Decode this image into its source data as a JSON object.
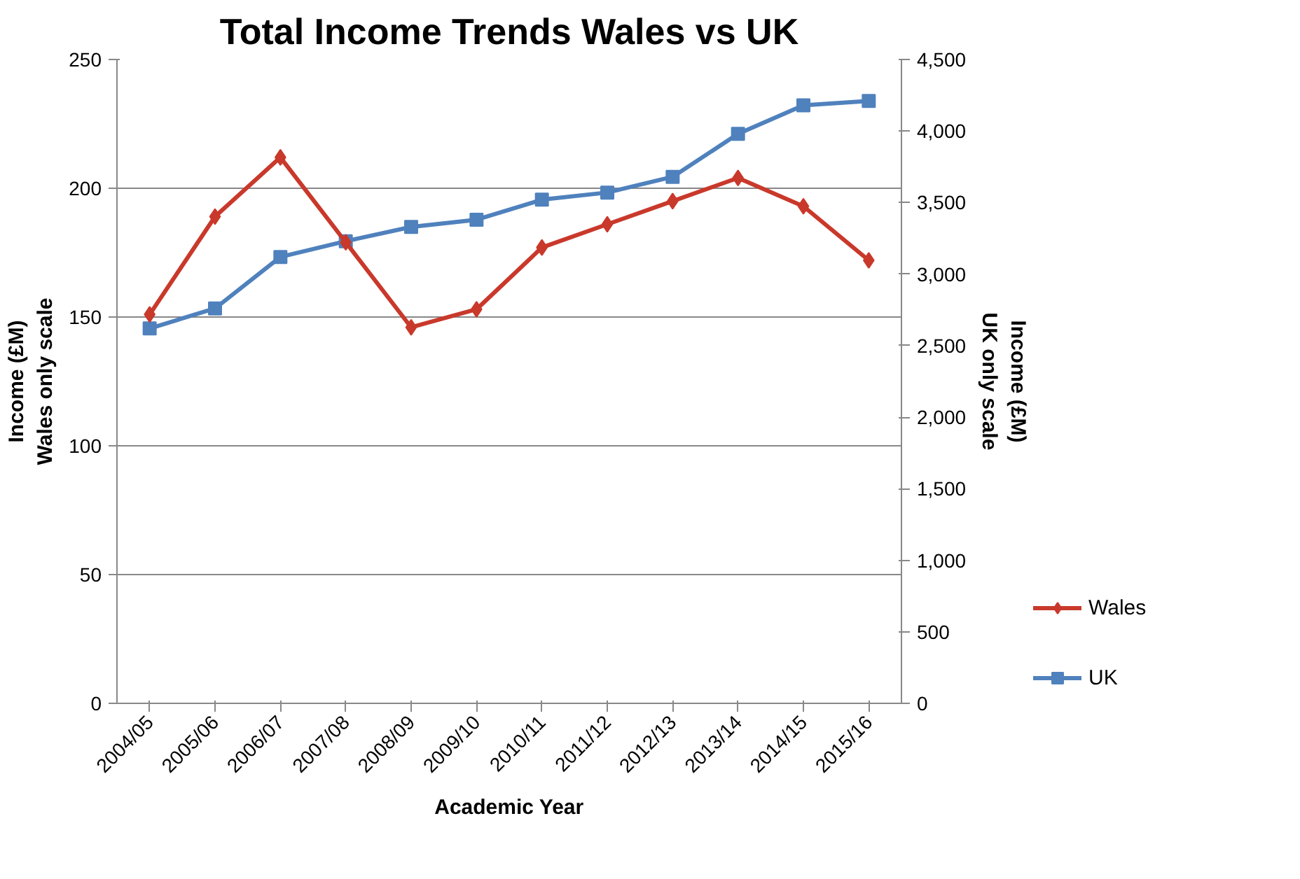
{
  "chart_data": {
    "type": "line",
    "title": "Total Income Trends Wales vs UK",
    "xlabel": "Academic Year",
    "ylabel": "Income (£M)\nWales only scale",
    "y2label": "Income (£M)\nUK only scale",
    "categories": [
      "2004/05",
      "2005/06",
      "2006/07",
      "2007/08",
      "2008/09",
      "2009/10",
      "2010/11",
      "2011/12",
      "2012/13",
      "2013/14",
      "2014/15",
      "2015/16"
    ],
    "series": [
      {
        "name": "Wales",
        "color": "#c9392b",
        "marker": "diamond",
        "values": [
          151,
          189,
          212,
          179,
          146,
          153,
          177,
          186,
          195,
          204,
          193,
          172
        ]
      },
      {
        "name": "UK",
        "color": "#4f81bd",
        "marker": "square",
        "axis": "y2",
        "values": [
          2620,
          2760,
          3120,
          3230,
          3330,
          3380,
          3520,
          3570,
          3680,
          3980,
          4180,
          4210
        ]
      }
    ],
    "ylim": [
      0,
      250
    ],
    "yticks": [
      0,
      50,
      100,
      150,
      200,
      250
    ],
    "y2lim": [
      0,
      4500
    ],
    "y2ticks": [
      {
        "value": 0,
        "label": "0"
      },
      {
        "value": 500,
        "label": "500"
      },
      {
        "value": 1000,
        "label": "1,000"
      },
      {
        "value": 1500,
        "label": "1,500"
      },
      {
        "value": 2000,
        "label": "2,000"
      },
      {
        "value": 2500,
        "label": "2,500"
      },
      {
        "value": 3000,
        "label": "3,000"
      },
      {
        "value": 3500,
        "label": "3,500"
      },
      {
        "value": 4000,
        "label": "4,000"
      },
      {
        "value": 4500,
        "label": "4,500"
      }
    ],
    "grid": "y",
    "legend": "right",
    "line_style": "solid"
  }
}
